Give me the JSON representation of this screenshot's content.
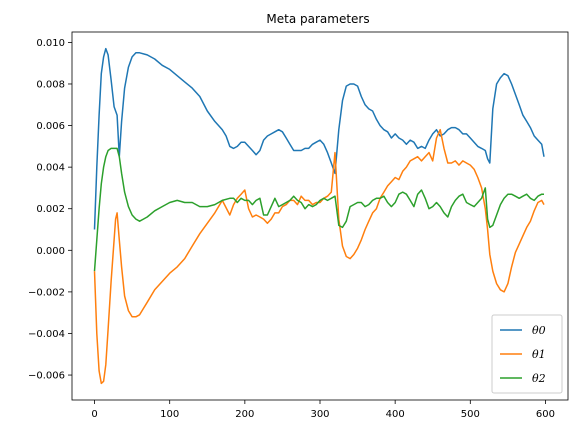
{
  "chart_data": {
    "type": "line",
    "title": "Meta parameters",
    "xlabel": "",
    "ylabel": "",
    "xlim": [
      -30,
      630
    ],
    "ylim": [
      -0.0072,
      0.0105
    ],
    "xticks": [
      0,
      100,
      200,
      300,
      400,
      500,
      600
    ],
    "xtick_labels": [
      "0",
      "100",
      "200",
      "300",
      "400",
      "500",
      "600"
    ],
    "yticks": [
      -0.006,
      -0.004,
      -0.002,
      0.0,
      0.002,
      0.004,
      0.006,
      0.008,
      0.01
    ],
    "ytick_labels": [
      "−0.006",
      "−0.004",
      "−0.002",
      "0.000",
      "0.002",
      "0.004",
      "0.006",
      "0.008",
      "0.010"
    ],
    "grid": false,
    "legend_position": "lower-right",
    "series": [
      {
        "name": "θ0",
        "color": "#1f77b4",
        "x": [
          0,
          3,
          6,
          9,
          12,
          15,
          18,
          22,
          26,
          30,
          33,
          36,
          40,
          45,
          50,
          55,
          60,
          70,
          80,
          90,
          100,
          110,
          120,
          130,
          140,
          150,
          160,
          170,
          175,
          180,
          185,
          190,
          195,
          200,
          205,
          210,
          215,
          220,
          225,
          230,
          235,
          240,
          245,
          250,
          255,
          260,
          265,
          270,
          275,
          280,
          285,
          290,
          295,
          300,
          305,
          310,
          315,
          320,
          325,
          330,
          335,
          340,
          345,
          350,
          355,
          360,
          365,
          370,
          375,
          380,
          385,
          390,
          395,
          400,
          405,
          410,
          415,
          420,
          425,
          430,
          435,
          440,
          445,
          450,
          455,
          460,
          465,
          470,
          475,
          480,
          485,
          490,
          495,
          500,
          505,
          510,
          515,
          520,
          523,
          526,
          530,
          535,
          540,
          545,
          550,
          555,
          560,
          565,
          570,
          575,
          580,
          585,
          590,
          595,
          598
        ],
        "y": [
          0.001,
          0.004,
          0.0065,
          0.0085,
          0.0093,
          0.0097,
          0.0094,
          0.0082,
          0.0069,
          0.0065,
          0.0045,
          0.0062,
          0.0078,
          0.0088,
          0.0093,
          0.0095,
          0.0095,
          0.0094,
          0.0092,
          0.0089,
          0.0087,
          0.0084,
          0.0081,
          0.0078,
          0.0074,
          0.0067,
          0.0062,
          0.0058,
          0.0055,
          0.005,
          0.0049,
          0.005,
          0.0052,
          0.0052,
          0.005,
          0.0048,
          0.0046,
          0.0048,
          0.0053,
          0.0055,
          0.0056,
          0.0057,
          0.0058,
          0.0057,
          0.0054,
          0.0051,
          0.0048,
          0.0048,
          0.0048,
          0.0049,
          0.0049,
          0.0051,
          0.0052,
          0.0053,
          0.0051,
          0.0047,
          0.0042,
          0.0037,
          0.0058,
          0.0072,
          0.0079,
          0.008,
          0.008,
          0.0079,
          0.0074,
          0.007,
          0.0068,
          0.0067,
          0.0063,
          0.006,
          0.0058,
          0.0057,
          0.0054,
          0.0056,
          0.0054,
          0.0053,
          0.0051,
          0.0053,
          0.0052,
          0.0049,
          0.005,
          0.0049,
          0.0053,
          0.0056,
          0.0058,
          0.0055,
          0.0056,
          0.0058,
          0.0059,
          0.0059,
          0.0058,
          0.0056,
          0.0056,
          0.0054,
          0.0052,
          0.005,
          0.0049,
          0.0048,
          0.0044,
          0.0042,
          0.0068,
          0.008,
          0.0083,
          0.0085,
          0.0084,
          0.008,
          0.0075,
          0.007,
          0.0065,
          0.0062,
          0.0059,
          0.0055,
          0.0053,
          0.0051,
          0.0045
        ]
      },
      {
        "name": "θ1",
        "color": "#ff7f0e",
        "x": [
          0,
          3,
          6,
          9,
          12,
          15,
          18,
          22,
          26,
          28,
          30,
          33,
          36,
          40,
          45,
          50,
          55,
          60,
          65,
          70,
          80,
          90,
          100,
          110,
          120,
          130,
          140,
          150,
          160,
          170,
          180,
          185,
          190,
          195,
          200,
          205,
          210,
          215,
          220,
          225,
          230,
          235,
          240,
          245,
          250,
          255,
          260,
          265,
          270,
          275,
          280,
          285,
          290,
          295,
          300,
          305,
          310,
          315,
          320,
          325,
          330,
          335,
          340,
          345,
          350,
          355,
          360,
          365,
          370,
          375,
          380,
          385,
          390,
          395,
          400,
          405,
          410,
          415,
          420,
          425,
          430,
          435,
          440,
          445,
          450,
          455,
          460,
          465,
          470,
          475,
          480,
          485,
          490,
          495,
          500,
          505,
          510,
          515,
          520,
          523,
          526,
          530,
          535,
          540,
          545,
          550,
          555,
          560,
          565,
          570,
          575,
          580,
          585,
          590,
          595,
          598
        ],
        "y": [
          -0.001,
          -0.004,
          -0.0058,
          -0.0064,
          -0.0063,
          -0.0055,
          -0.0038,
          -0.0015,
          0.0005,
          0.0015,
          0.0018,
          0.0005,
          -0.0008,
          -0.0022,
          -0.0029,
          -0.0032,
          -0.0032,
          -0.0031,
          -0.0028,
          -0.0025,
          -0.0019,
          -0.0015,
          -0.0011,
          -0.0008,
          -0.0004,
          0.0002,
          0.0008,
          0.0013,
          0.0018,
          0.0024,
          0.0017,
          0.0022,
          0.0025,
          0.0027,
          0.0029,
          0.002,
          0.0016,
          0.0017,
          0.0016,
          0.0015,
          0.0013,
          0.0015,
          0.0018,
          0.0018,
          0.0021,
          0.0022,
          0.0024,
          0.0024,
          0.0022,
          0.0026,
          0.0024,
          0.0024,
          0.0022,
          0.0023,
          0.0023,
          0.0025,
          0.0026,
          0.0028,
          0.0047,
          0.0015,
          0.0002,
          -0.0003,
          -0.0004,
          -0.0002,
          0.0001,
          0.0005,
          0.001,
          0.0014,
          0.0018,
          0.002,
          0.0025,
          0.0028,
          0.0031,
          0.0033,
          0.0035,
          0.0034,
          0.0038,
          0.004,
          0.0043,
          0.0044,
          0.0045,
          0.0043,
          0.0045,
          0.0047,
          0.0043,
          0.0054,
          0.0058,
          0.0049,
          0.0042,
          0.0042,
          0.0043,
          0.0041,
          0.0043,
          0.0042,
          0.0041,
          0.0039,
          0.0035,
          0.003,
          0.002,
          0.001,
          -0.0002,
          -0.001,
          -0.0016,
          -0.0019,
          -0.002,
          -0.0016,
          -0.0008,
          -0.0001,
          0.0003,
          0.0007,
          0.0011,
          0.0014,
          0.0019,
          0.0023,
          0.0024,
          0.0022
        ]
      },
      {
        "name": "θ2",
        "color": "#2ca02c",
        "x": [
          0,
          3,
          6,
          9,
          12,
          15,
          18,
          22,
          26,
          30,
          33,
          36,
          40,
          45,
          50,
          55,
          60,
          65,
          70,
          80,
          90,
          100,
          110,
          120,
          130,
          140,
          150,
          160,
          170,
          180,
          185,
          190,
          195,
          200,
          205,
          210,
          215,
          220,
          225,
          230,
          235,
          240,
          245,
          250,
          255,
          260,
          265,
          270,
          275,
          280,
          285,
          290,
          295,
          300,
          305,
          310,
          315,
          320,
          325,
          330,
          335,
          340,
          345,
          350,
          355,
          360,
          365,
          370,
          375,
          380,
          385,
          390,
          395,
          400,
          405,
          410,
          415,
          420,
          425,
          430,
          435,
          440,
          445,
          450,
          455,
          460,
          465,
          470,
          475,
          480,
          485,
          490,
          495,
          500,
          505,
          510,
          515,
          520,
          523,
          526,
          530,
          535,
          540,
          545,
          550,
          555,
          560,
          565,
          570,
          575,
          580,
          585,
          590,
          595,
          598
        ],
        "y": [
          -0.001,
          0.0005,
          0.002,
          0.0032,
          0.004,
          0.0045,
          0.0048,
          0.0049,
          0.0049,
          0.0049,
          0.0045,
          0.0037,
          0.0028,
          0.0021,
          0.0017,
          0.0015,
          0.0014,
          0.0015,
          0.0016,
          0.0019,
          0.0021,
          0.0023,
          0.0024,
          0.0023,
          0.0023,
          0.0021,
          0.0021,
          0.0022,
          0.0024,
          0.0025,
          0.0025,
          0.0023,
          0.0025,
          0.0024,
          0.0024,
          0.0022,
          0.0024,
          0.0025,
          0.0017,
          0.0017,
          0.0021,
          0.0025,
          0.0021,
          0.0022,
          0.0023,
          0.0024,
          0.0026,
          0.0024,
          0.0023,
          0.002,
          0.0022,
          0.0021,
          0.0022,
          0.0024,
          0.0025,
          0.0024,
          0.0025,
          0.0026,
          0.0012,
          0.0011,
          0.0014,
          0.0021,
          0.0022,
          0.0023,
          0.0023,
          0.0021,
          0.0022,
          0.0024,
          0.0025,
          0.0025,
          0.0026,
          0.0023,
          0.0021,
          0.0023,
          0.0027,
          0.0028,
          0.0027,
          0.0024,
          0.0021,
          0.0027,
          0.0029,
          0.0025,
          0.002,
          0.0021,
          0.0023,
          0.0021,
          0.0018,
          0.0016,
          0.0021,
          0.0024,
          0.0026,
          0.0027,
          0.0023,
          0.0022,
          0.0021,
          0.0023,
          0.0025,
          0.003,
          0.0015,
          0.0011,
          0.0012,
          0.0017,
          0.0022,
          0.0025,
          0.0027,
          0.0027,
          0.0026,
          0.0025,
          0.0026,
          0.0027,
          0.0025,
          0.0024,
          0.0026,
          0.0027,
          0.0027
        ]
      }
    ]
  }
}
